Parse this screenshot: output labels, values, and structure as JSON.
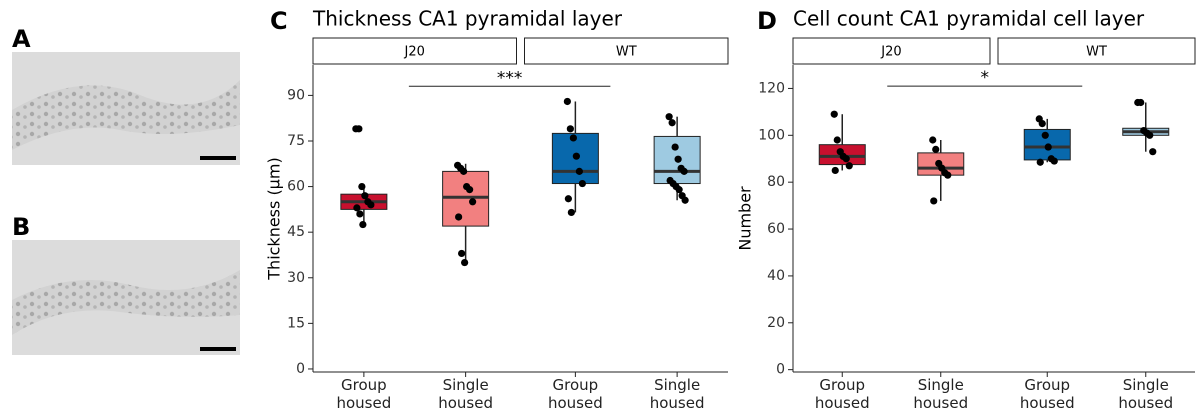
{
  "panels": {
    "a": "A",
    "b": "B"
  },
  "chart_data": [
    {
      "type": "box",
      "panel": "C",
      "title": "Thickness CA1 pyramidal layer",
      "y_label": "Thickness (μm)",
      "ylim": [
        -1,
        100
      ],
      "yticks": [
        0,
        15,
        30,
        45,
        60,
        75,
        90
      ],
      "facets": [
        "J20",
        "WT"
      ],
      "significance": {
        "label": "***",
        "y": 93,
        "from": 0,
        "to": 2
      },
      "boxes": [
        {
          "facet": 0,
          "category": "Group housed",
          "color": "#c8102e",
          "whisker_low": 47.5,
          "q1": 52.5,
          "median": 55,
          "q3": 57.5,
          "whisker_high": 60,
          "points": [
            79,
            79,
            60,
            57,
            55,
            54,
            53,
            51,
            47.5
          ]
        },
        {
          "facet": 0,
          "category": "Single housed",
          "color": "#f28080",
          "whisker_low": 35,
          "q1": 47,
          "median": 56.5,
          "q3": 65,
          "whisker_high": 67.5,
          "points": [
            67,
            66,
            65,
            60,
            59,
            55,
            50,
            38,
            35
          ]
        },
        {
          "facet": 1,
          "category": "Group housed",
          "color": "#0868ac",
          "whisker_low": 51.5,
          "q1": 61,
          "median": 65,
          "q3": 77.5,
          "whisker_high": 88,
          "points": [
            88,
            79,
            76,
            70,
            65,
            61,
            56,
            51.5
          ]
        },
        {
          "facet": 1,
          "category": "Single housed",
          "color": "#9ecae1",
          "whisker_low": 55.5,
          "q1": 61,
          "median": 65,
          "q3": 76.5,
          "whisker_high": 83,
          "points": [
            83,
            81,
            73,
            69,
            66,
            65,
            62,
            61,
            60,
            59,
            57,
            55.5
          ]
        }
      ]
    },
    {
      "type": "box",
      "panel": "D",
      "title": "Cell count CA1 pyramidal cell layer",
      "y_label": "Number",
      "ylim": [
        -1,
        130
      ],
      "yticks": [
        0,
        20,
        40,
        60,
        80,
        100,
        120
      ],
      "facets": [
        "J20",
        "WT"
      ],
      "significance": {
        "label": "*",
        "y": 121,
        "from": 0,
        "to": 2
      },
      "boxes": [
        {
          "facet": 0,
          "category": "Group housed",
          "color": "#c8102e",
          "whisker_low": 85,
          "q1": 87.5,
          "median": 91,
          "q3": 96,
          "whisker_high": 109,
          "points": [
            109,
            98,
            93,
            91,
            90,
            87,
            85
          ]
        },
        {
          "facet": 0,
          "category": "Single housed",
          "color": "#f28080",
          "whisker_low": 72,
          "q1": 83,
          "median": 86,
          "q3": 92.5,
          "whisker_high": 98,
          "points": [
            98,
            94,
            88,
            86,
            84,
            83,
            72
          ]
        },
        {
          "facet": 1,
          "category": "Group housed",
          "color": "#0868ac",
          "whisker_low": 88.5,
          "q1": 89.5,
          "median": 95,
          "q3": 102.5,
          "whisker_high": 107,
          "points": [
            107,
            105,
            100,
            95,
            90,
            89,
            88.5
          ]
        },
        {
          "facet": 1,
          "category": "Single housed",
          "color": "#9ecae1",
          "whisker_low": 93,
          "q1": 100,
          "median": 101.5,
          "q3": 103,
          "whisker_high": 114,
          "points": [
            114,
            114,
            102,
            101,
            100,
            93
          ]
        }
      ]
    }
  ]
}
